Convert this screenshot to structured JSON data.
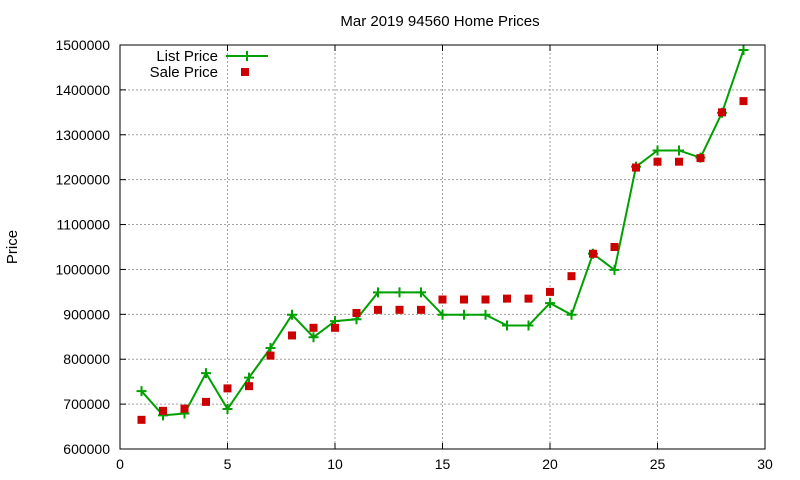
{
  "chart_data": {
    "type": "line",
    "title": "Mar 2019 94560 Home Prices",
    "xlabel": "",
    "ylabel": "Price",
    "xlim": [
      0,
      30
    ],
    "ylim": [
      600000,
      1500000
    ],
    "xticks": [
      "0",
      "5",
      "10",
      "15",
      "20",
      "25",
      "30"
    ],
    "yticks": [
      "600000",
      "700000",
      "800000",
      "900000",
      "1000000",
      "1100000",
      "1200000",
      "1300000",
      "1400000",
      "1500000"
    ],
    "grid": true,
    "legend_position": "top-left",
    "series": [
      {
        "name": "List Price",
        "style": "line-plus",
        "color": "#00a000",
        "x": [
          1,
          2,
          3,
          4,
          5,
          6,
          7,
          8,
          9,
          10,
          11,
          12,
          13,
          14,
          15,
          16,
          17,
          18,
          19,
          20,
          21,
          22,
          23,
          24,
          25,
          26,
          27,
          28,
          29
        ],
        "y": [
          729000,
          675000,
          679000,
          769000,
          689000,
          759000,
          825000,
          899000,
          849000,
          885000,
          889000,
          949000,
          949000,
          949000,
          899000,
          899000,
          899000,
          875000,
          875000,
          925000,
          899000,
          1035000,
          999000,
          1229000,
          1265000,
          1265000,
          1249000,
          1349000,
          1489000
        ]
      },
      {
        "name": "Sale Price",
        "style": "points-square",
        "color": "#cc0000",
        "x": [
          1,
          2,
          3,
          4,
          5,
          6,
          7,
          8,
          9,
          10,
          11,
          12,
          13,
          14,
          15,
          16,
          17,
          18,
          19,
          20,
          21,
          22,
          23,
          24,
          25,
          26,
          27,
          28,
          29
        ],
        "y": [
          665000,
          685000,
          690000,
          705000,
          735000,
          740000,
          808000,
          853000,
          870000,
          870000,
          903000,
          910000,
          910000,
          910000,
          933000,
          933000,
          933000,
          935000,
          935000,
          950000,
          985000,
          1035000,
          1050000,
          1227000,
          1240000,
          1240000,
          1248000,
          1350000,
          1375000
        ]
      }
    ]
  }
}
